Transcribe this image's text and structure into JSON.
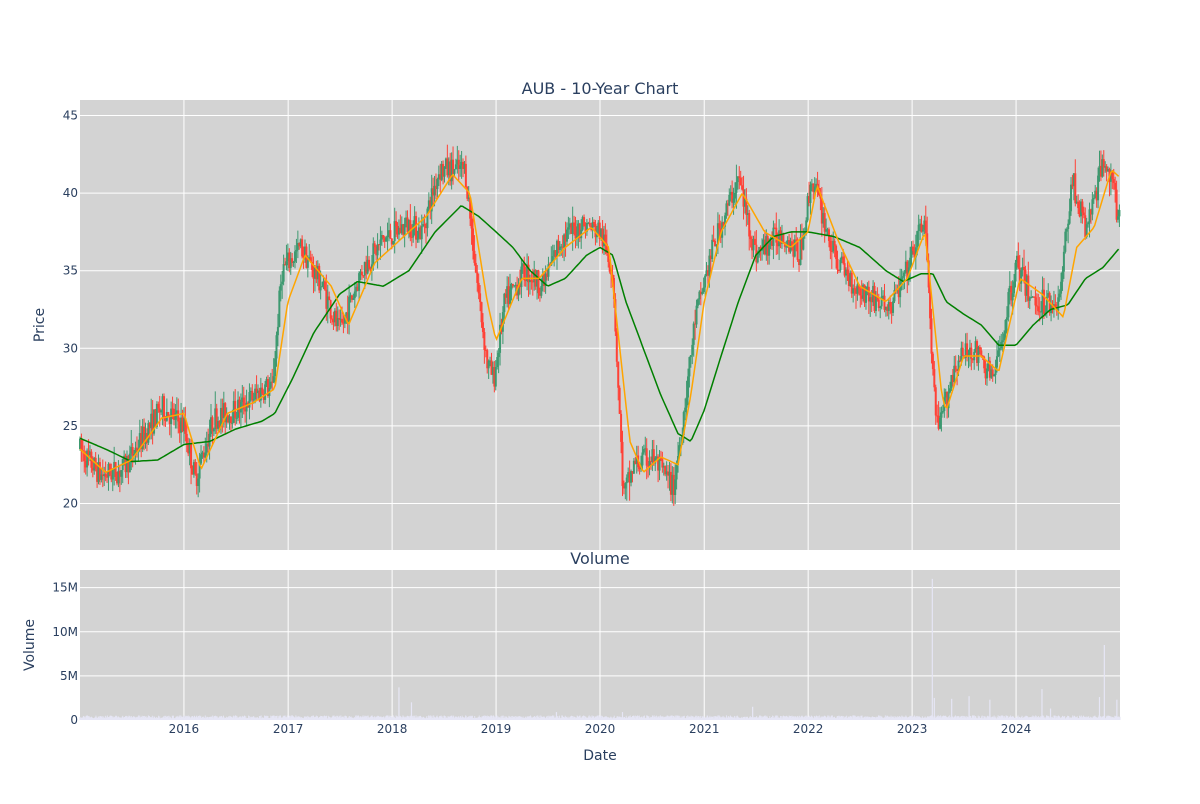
{
  "chart_data": [
    {
      "type": "candlestick",
      "title": "AUB - 10-Year Chart",
      "xlabel": "",
      "ylabel": "Price",
      "x_range": [
        "2015-01-01",
        "2024-12-31"
      ],
      "ylim": [
        17,
        46
      ],
      "yticks": [
        20,
        25,
        30,
        35,
        40,
        45
      ],
      "grid": true,
      "legend": "none",
      "up_color": "#3d9970",
      "down_color": "#ff4136",
      "moving_average_colors": [
        "#ffa500",
        "#008000"
      ],
      "price_path": [
        [
          "2015-01-01",
          23.5
        ],
        [
          "2015-03-15",
          21.8
        ],
        [
          "2015-06-01",
          22.2
        ],
        [
          "2015-08-01",
          24.0
        ],
        [
          "2015-10-15",
          26.2
        ],
        [
          "2016-01-01",
          25.0
        ],
        [
          "2016-02-10",
          21.6
        ],
        [
          "2016-04-15",
          25.5
        ],
        [
          "2016-07-01",
          26.0
        ],
        [
          "2016-10-15",
          27.5
        ],
        [
          "2016-11-05",
          27.2
        ],
        [
          "2016-12-10",
          35.0
        ],
        [
          "2017-02-15",
          36.5
        ],
        [
          "2017-05-01",
          34.0
        ],
        [
          "2017-07-01",
          31.0
        ],
        [
          "2017-09-15",
          35.0
        ],
        [
          "2017-12-01",
          37.0
        ],
        [
          "2018-03-01",
          38.0
        ],
        [
          "2018-04-15",
          37.5
        ],
        [
          "2018-06-15",
          41.5
        ],
        [
          "2018-09-15",
          41.5
        ],
        [
          "2018-10-25",
          34.5
        ],
        [
          "2018-12-01",
          29.0
        ],
        [
          "2018-12-24",
          28.0
        ],
        [
          "2019-02-01",
          33.0
        ],
        [
          "2019-04-15",
          35.0
        ],
        [
          "2019-06-15",
          34.0
        ],
        [
          "2019-08-15",
          37.0
        ],
        [
          "2019-11-01",
          38.0
        ],
        [
          "2020-01-01",
          37.5
        ],
        [
          "2020-02-15",
          35.0
        ],
        [
          "2020-03-23",
          20.5
        ],
        [
          "2020-05-01",
          22.5
        ],
        [
          "2020-07-01",
          23.0
        ],
        [
          "2020-09-15",
          21.0
        ],
        [
          "2020-10-15",
          25.0
        ],
        [
          "2020-12-01",
          32.0
        ],
        [
          "2021-02-01",
          36.5
        ],
        [
          "2021-05-01",
          41.0
        ],
        [
          "2021-07-01",
          36.0
        ],
        [
          "2021-10-01",
          37.5
        ],
        [
          "2021-12-01",
          36.0
        ],
        [
          "2022-01-15",
          41.0
        ],
        [
          "2022-04-01",
          36.0
        ],
        [
          "2022-06-15",
          34.0
        ],
        [
          "2022-10-15",
          32.5
        ],
        [
          "2022-12-15",
          35.0
        ],
        [
          "2023-02-15",
          38.5
        ],
        [
          "2023-03-15",
          28.0
        ],
        [
          "2023-04-01",
          24.5
        ],
        [
          "2023-06-01",
          29.0
        ],
        [
          "2023-08-01",
          30.0
        ],
        [
          "2023-10-15",
          28.0
        ],
        [
          "2024-01-01",
          35.5
        ],
        [
          "2024-03-01",
          33.0
        ],
        [
          "2024-06-01",
          33.0
        ],
        [
          "2024-07-15",
          41.0
        ],
        [
          "2024-09-01",
          37.5
        ],
        [
          "2024-11-10",
          42.5
        ],
        [
          "2024-12-31",
          38.0
        ]
      ],
      "ma_short_path": [
        [
          "2015-01-01",
          23.5
        ],
        [
          "2015-04-01",
          22.0
        ],
        [
          "2015-07-01",
          22.8
        ],
        [
          "2015-10-15",
          25.5
        ],
        [
          "2016-01-01",
          25.8
        ],
        [
          "2016-03-01",
          22.2
        ],
        [
          "2016-06-01",
          25.8
        ],
        [
          "2016-09-01",
          26.5
        ],
        [
          "2016-11-15",
          27.4
        ],
        [
          "2016-12-31",
          33.0
        ],
        [
          "2017-03-01",
          36.0
        ],
        [
          "2017-06-01",
          34.0
        ],
        [
          "2017-08-01",
          31.5
        ],
        [
          "2017-11-01",
          35.5
        ],
        [
          "2018-03-01",
          37.5
        ],
        [
          "2018-05-01",
          38.5
        ],
        [
          "2018-08-01",
          41.2
        ],
        [
          "2018-10-01",
          40.0
        ],
        [
          "2018-12-01",
          33.0
        ],
        [
          "2019-01-01",
          30.5
        ],
        [
          "2019-04-01",
          34.5
        ],
        [
          "2019-06-01",
          34.5
        ],
        [
          "2019-09-01",
          36.5
        ],
        [
          "2019-12-01",
          37.8
        ],
        [
          "2020-02-01",
          36.5
        ],
        [
          "2020-04-15",
          24.0
        ],
        [
          "2020-06-01",
          22.0
        ],
        [
          "2020-08-01",
          23.0
        ],
        [
          "2020-10-01",
          22.5
        ],
        [
          "2020-11-15",
          27.0
        ],
        [
          "2021-01-01",
          33.0
        ],
        [
          "2021-03-01",
          37.5
        ],
        [
          "2021-05-15",
          40.0
        ],
        [
          "2021-08-01",
          37.5
        ],
        [
          "2021-11-01",
          36.5
        ],
        [
          "2021-12-31",
          37.5
        ],
        [
          "2022-02-01",
          40.5
        ],
        [
          "2022-04-15",
          37.0
        ],
        [
          "2022-07-01",
          34.0
        ],
        [
          "2022-10-01",
          33.0
        ],
        [
          "2022-12-15",
          34.5
        ],
        [
          "2023-02-15",
          37.5
        ],
        [
          "2023-04-15",
          27.0
        ],
        [
          "2023-05-01",
          26.0
        ],
        [
          "2023-07-01",
          29.5
        ],
        [
          "2023-09-01",
          29.5
        ],
        [
          "2023-11-01",
          28.5
        ],
        [
          "2024-01-15",
          34.5
        ],
        [
          "2024-04-01",
          33.5
        ],
        [
          "2024-06-15",
          32.0
        ],
        [
          "2024-08-01",
          36.5
        ],
        [
          "2024-10-01",
          37.8
        ],
        [
          "2024-12-01",
          41.5
        ],
        [
          "2024-12-31",
          41.0
        ]
      ],
      "ma_long_path": [
        [
          "2015-01-01",
          24.2
        ],
        [
          "2015-04-01",
          23.5
        ],
        [
          "2015-07-01",
          22.7
        ],
        [
          "2015-10-01",
          22.8
        ],
        [
          "2016-01-01",
          23.8
        ],
        [
          "2016-04-01",
          24.0
        ],
        [
          "2016-07-01",
          24.8
        ],
        [
          "2016-10-01",
          25.3
        ],
        [
          "2016-11-15",
          25.8
        ],
        [
          "2017-01-15",
          28.0
        ],
        [
          "2017-04-01",
          31.0
        ],
        [
          "2017-07-01",
          33.5
        ],
        [
          "2017-09-01",
          34.3
        ],
        [
          "2017-12-01",
          34.0
        ],
        [
          "2018-03-01",
          35.0
        ],
        [
          "2018-06-01",
          37.5
        ],
        [
          "2018-09-01",
          39.2
        ],
        [
          "2018-11-01",
          38.5
        ],
        [
          "2019-01-01",
          37.5
        ],
        [
          "2019-03-01",
          36.5
        ],
        [
          "2019-05-01",
          35.0
        ],
        [
          "2019-07-01",
          34.0
        ],
        [
          "2019-09-01",
          34.5
        ],
        [
          "2019-11-15",
          36.0
        ],
        [
          "2020-01-01",
          36.5
        ],
        [
          "2020-02-15",
          36.0
        ],
        [
          "2020-04-01",
          33.0
        ],
        [
          "2020-06-01",
          30.0
        ],
        [
          "2020-08-01",
          27.0
        ],
        [
          "2020-10-01",
          24.5
        ],
        [
          "2020-11-15",
          24.0
        ],
        [
          "2021-01-01",
          26.0
        ],
        [
          "2021-03-01",
          29.5
        ],
        [
          "2021-05-01",
          33.0
        ],
        [
          "2021-07-01",
          36.0
        ],
        [
          "2021-09-01",
          37.2
        ],
        [
          "2021-11-01",
          37.5
        ],
        [
          "2022-01-01",
          37.5
        ],
        [
          "2022-04-01",
          37.2
        ],
        [
          "2022-07-01",
          36.5
        ],
        [
          "2022-10-01",
          35.0
        ],
        [
          "2022-12-01",
          34.3
        ],
        [
          "2023-02-01",
          34.8
        ],
        [
          "2023-03-15",
          34.8
        ],
        [
          "2023-05-01",
          33.0
        ],
        [
          "2023-07-01",
          32.2
        ],
        [
          "2023-09-01",
          31.5
        ],
        [
          "2023-11-01",
          30.2
        ],
        [
          "2024-01-01",
          30.2
        ],
        [
          "2024-03-01",
          31.5
        ],
        [
          "2024-05-01",
          32.5
        ],
        [
          "2024-07-01",
          32.8
        ],
        [
          "2024-09-01",
          34.5
        ],
        [
          "2024-11-01",
          35.2
        ],
        [
          "2024-12-31",
          36.5
        ]
      ]
    },
    {
      "type": "bar",
      "title": "Volume",
      "xlabel": "Date",
      "ylabel": "Volume",
      "ylim": [
        0,
        17000000
      ],
      "yticks": [
        0,
        5000000,
        10000000,
        15000000
      ],
      "ytick_labels": [
        "0",
        "5M",
        "10M",
        "15M"
      ],
      "xticks": [
        "2016",
        "2017",
        "2018",
        "2019",
        "2020",
        "2021",
        "2022",
        "2023",
        "2024"
      ],
      "grid": true,
      "bar_color": "#e6e6f5",
      "baseline_volume": 350000,
      "spikes": [
        [
          "2018-01-25",
          3700000
        ],
        [
          "2018-03-10",
          2000000
        ],
        [
          "2019-08-01",
          900000
        ],
        [
          "2020-03-20",
          900000
        ],
        [
          "2021-06-20",
          1500000
        ],
        [
          "2023-03-13",
          16000000
        ],
        [
          "2023-03-20",
          2500000
        ],
        [
          "2023-05-20",
          2400000
        ],
        [
          "2023-07-20",
          2700000
        ],
        [
          "2023-10-01",
          2300000
        ],
        [
          "2024-04-01",
          3500000
        ],
        [
          "2024-05-01",
          1300000
        ],
        [
          "2024-10-20",
          2600000
        ],
        [
          "2024-11-06",
          8500000
        ],
        [
          "2024-12-20",
          2300000
        ]
      ]
    }
  ]
}
